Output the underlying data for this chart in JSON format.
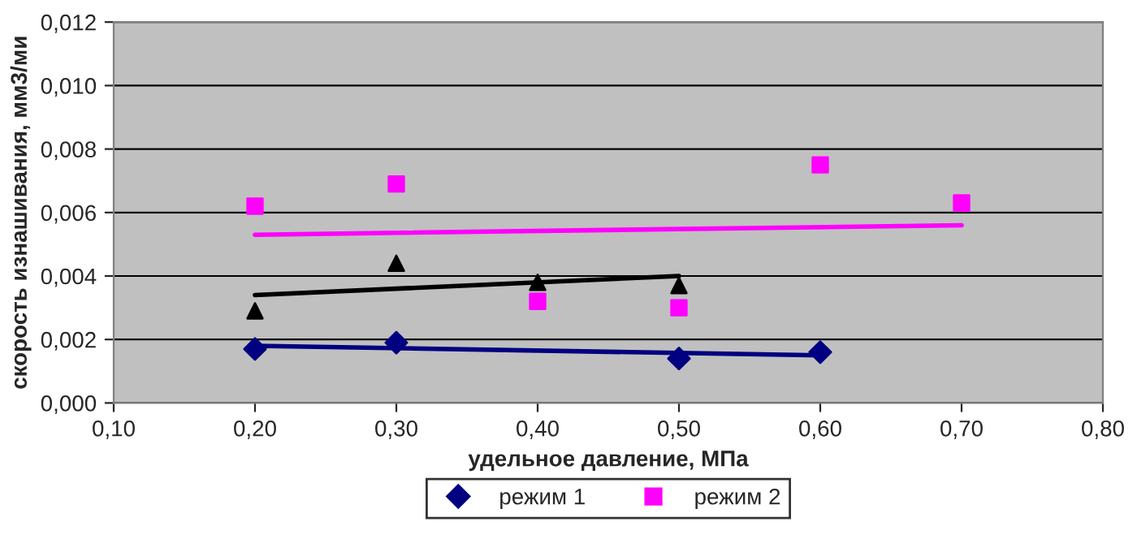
{
  "chart_data": {
    "type": "scatter",
    "xlabel": "удельное давление, МПа",
    "ylabel": "скорость изнашивания, мм3/ми",
    "xlim": [
      0.1,
      0.8
    ],
    "ylim": [
      0,
      0.012
    ],
    "xticks": [
      {
        "value": 0.1,
        "label": "0,10"
      },
      {
        "value": 0.2,
        "label": "0,20"
      },
      {
        "value": 0.3,
        "label": "0,30"
      },
      {
        "value": 0.4,
        "label": "0,40"
      },
      {
        "value": 0.5,
        "label": "0,50"
      },
      {
        "value": 0.6,
        "label": "0,60"
      },
      {
        "value": 0.7,
        "label": "0,70"
      },
      {
        "value": 0.8,
        "label": "0,80"
      }
    ],
    "yticks": [
      {
        "value": 0,
        "label": "0,000"
      },
      {
        "value": 0.002,
        "label": "0,002"
      },
      {
        "value": 0.004,
        "label": "0,004"
      },
      {
        "value": 0.006,
        "label": "0,006"
      },
      {
        "value": 0.008,
        "label": "0,008"
      },
      {
        "value": 0.01,
        "label": "0,010"
      },
      {
        "value": 0.012,
        "label": "0,012"
      }
    ],
    "grid": "y",
    "legend": "bottom",
    "series": [
      {
        "name": "режим 1",
        "color": "#000080",
        "marker": "diamond",
        "x": [
          0.2,
          0.3,
          0.5,
          0.6
        ],
        "values": [
          0.0017,
          0.0019,
          0.0014,
          0.0016
        ]
      },
      {
        "name": "режим 2",
        "color": "#ff00ff",
        "marker": "square",
        "x": [
          0.2,
          0.3,
          0.4,
          0.5,
          0.6,
          0.7
        ],
        "values": [
          0.0062,
          0.0069,
          0.0032,
          0.003,
          0.0075,
          0.0063
        ]
      },
      {
        "color": "#000000",
        "marker": "triangle",
        "x": [
          0.2,
          0.3,
          0.4,
          0.5
        ],
        "values": [
          0.0029,
          0.0044,
          0.0038,
          0.0037
        ]
      },
      {
        "type": "line",
        "color": "#000080",
        "x": [
          0.2,
          0.6
        ],
        "values": [
          0.0018,
          0.0015
        ]
      },
      {
        "type": "line",
        "color": "#ff00ff",
        "x": [
          0.2,
          0.7
        ],
        "values": [
          0.0053,
          0.0056
        ]
      },
      {
        "type": "line",
        "color": "#000000",
        "x": [
          0.2,
          0.5
        ],
        "values": [
          0.0034,
          0.004
        ]
      }
    ]
  }
}
